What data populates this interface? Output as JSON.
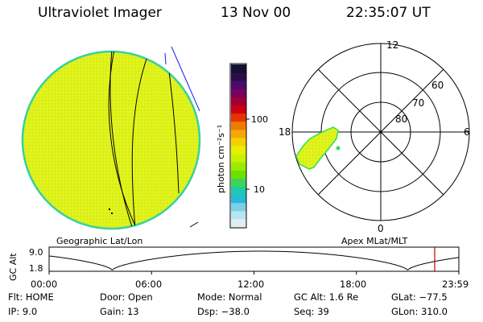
{
  "header": {
    "instrument": "Ultraviolet Imager",
    "date": "13 Nov 00",
    "time": "22:35:07 UT"
  },
  "colorbar": {
    "unit_label": "photon cm⁻²s⁻¹",
    "ticks": [
      "100",
      "10"
    ],
    "colors": [
      "#111133",
      "#2a0f47",
      "#4b0a6b",
      "#7a0060",
      "#a00033",
      "#cc0011",
      "#e83300",
      "#f07a00",
      "#f5a800",
      "#f5d000",
      "#e6f000",
      "#c8f000",
      "#9cec00",
      "#6ee000",
      "#3ad45a",
      "#20c9a8",
      "#28b8d8",
      "#7ad0e8",
      "#b8e4f0",
      "#e0eef4"
    ]
  },
  "geo_panel": {
    "label": "Geographic Lat/Lon",
    "disk_color": "#dff21a",
    "edge_color": "#39d0a0"
  },
  "polar_panel": {
    "label": "Apex MLat/MLT",
    "mlt_labels": {
      "top": "12",
      "left": "18",
      "right": "6",
      "bottom": "0"
    },
    "lat_labels": [
      "60",
      "70",
      "80"
    ]
  },
  "timeline": {
    "ylabel": "GC Alt",
    "yticks": [
      "9.0",
      "1.8"
    ],
    "xticks": [
      "00:00",
      "06:00",
      "12:00",
      "18:00",
      "23:59"
    ],
    "current_hour": 22.585,
    "marker_color": "#c00000",
    "orbit_min_hours": [
      3.7,
      21.0
    ],
    "orbit_max_hours": [
      13.2
    ]
  },
  "info": {
    "flt": "Flt: HOME",
    "ip": "IP: 9.0",
    "door": "Door: Open",
    "gain": "Gain: 13",
    "mode": "Mode: Normal",
    "dsp": "Dsp: −38.0",
    "gcalt": "GC Alt: 1.6 Re",
    "seq": "Seq: 39",
    "glat": "GLat: −77.5",
    "glon": "GLon: 310.0"
  }
}
